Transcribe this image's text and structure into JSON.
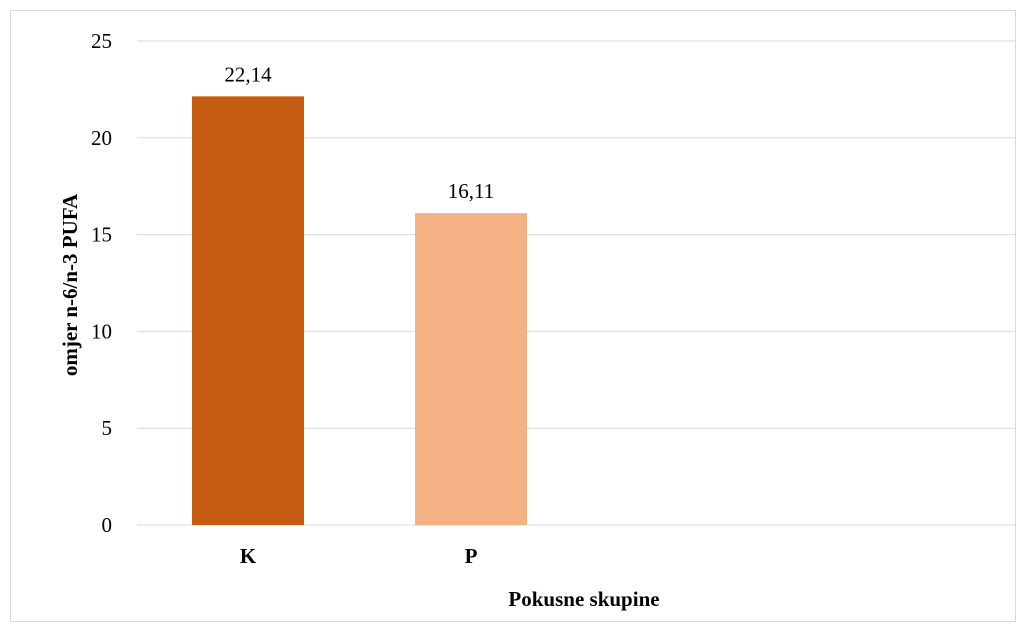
{
  "chart_data": {
    "type": "bar",
    "title": "",
    "xlabel": "Pokusne skupine",
    "ylabel": "omjer n-6/n-3 PUFA",
    "categories": [
      "K",
      "P"
    ],
    "values": [
      22.14,
      16.11
    ],
    "data_labels": [
      "22,14",
      "16,11"
    ],
    "bar_colors": [
      "#c55a11",
      "#f4b183"
    ],
    "ylim": [
      0,
      25
    ],
    "yticks": [
      0,
      5,
      10,
      15,
      20,
      25
    ],
    "grid": true,
    "gridline_color": "#d9d9d9",
    "legend": "none"
  }
}
